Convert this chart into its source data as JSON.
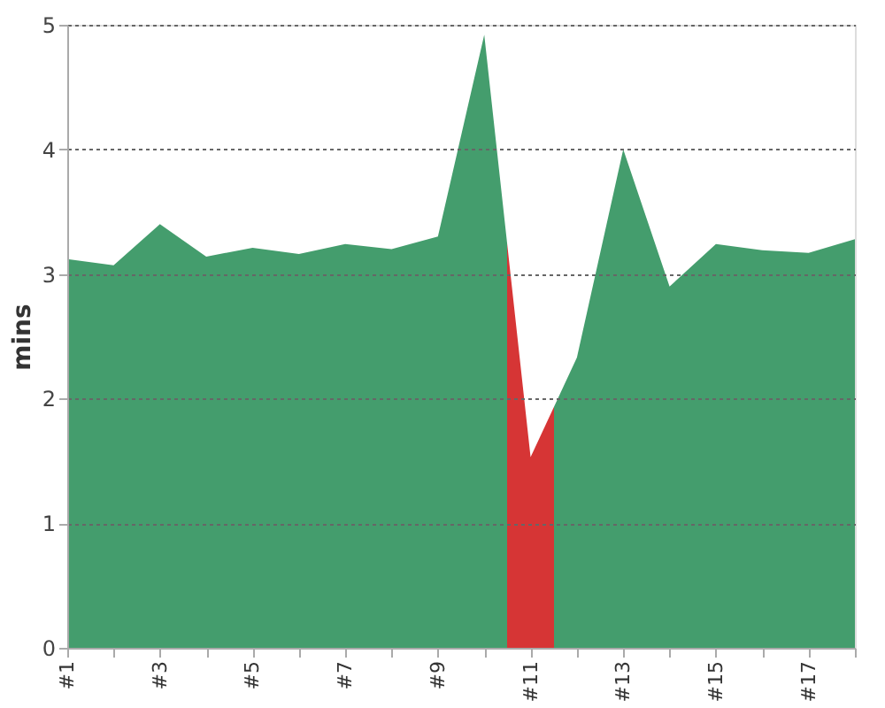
{
  "chart_data": {
    "type": "area",
    "ylabel": "mins",
    "x": [
      1,
      2,
      3,
      4,
      5,
      6,
      7,
      8,
      9,
      10,
      11,
      12,
      13,
      14,
      15,
      16,
      17,
      18
    ],
    "series": [
      {
        "color": "#449d6d",
        "values": [
          3.12,
          3.07,
          3.4,
          3.14,
          3.21,
          3.16,
          3.24,
          3.2,
          3.3,
          4.92,
          1.53,
          2.33,
          4.0,
          2.9,
          3.24,
          3.19,
          3.17,
          3.28
        ],
        "colors": [
          null,
          null,
          null,
          null,
          null,
          null,
          null,
          null,
          null,
          null,
          "#d63535",
          null,
          null,
          null,
          null,
          null,
          null,
          null
        ]
      }
    ],
    "xlim": [
      1,
      18
    ],
    "xticks": [
      {
        "value": 1,
        "label": "#1"
      },
      {
        "value": 2,
        "label": null
      },
      {
        "value": 3,
        "label": "#3"
      },
      {
        "value": 4,
        "label": null
      },
      {
        "value": 5,
        "label": "#5"
      },
      {
        "value": 6,
        "label": null
      },
      {
        "value": 7,
        "label": "#7"
      },
      {
        "value": 8,
        "label": null
      },
      {
        "value": 9,
        "label": "#9"
      },
      {
        "value": 10,
        "label": null
      },
      {
        "value": 11,
        "label": "#11"
      },
      {
        "value": 12,
        "label": null
      },
      {
        "value": 13,
        "label": "#13"
      },
      {
        "value": 14,
        "label": null
      },
      {
        "value": 15,
        "label": "#15"
      },
      {
        "value": 16,
        "label": null
      },
      {
        "value": 17,
        "label": "#17"
      },
      {
        "value": 18,
        "label": null
      }
    ],
    "ylim": [
      0,
      5
    ],
    "yticks": [
      0,
      1,
      2,
      3,
      4,
      5
    ],
    "grid": "y"
  }
}
